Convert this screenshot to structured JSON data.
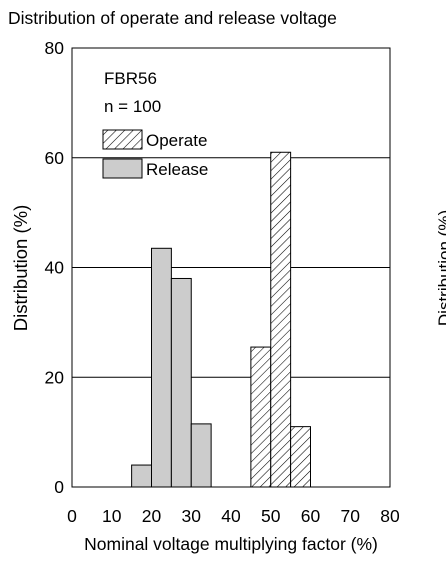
{
  "chart_data": {
    "type": "bar",
    "title": "Distribution of operate and release voltage",
    "xlabel": "Nominal voltage multiplying factor (%)",
    "ylabel": "Distribution (%)",
    "right_cut_label": "Distribution (%)",
    "xlim": [
      0,
      80
    ],
    "ylim": [
      0,
      80
    ],
    "xticks": [
      "0",
      "10",
      "20",
      "30",
      "40",
      "50",
      "60",
      "70",
      "80"
    ],
    "yticks": [
      "0",
      "20",
      "40",
      "60",
      "80"
    ],
    "grid": "horizontal",
    "annotations": [
      "FBR56",
      "n = 100"
    ],
    "legend_position": "top-left",
    "series": [
      {
        "name": "Operate",
        "fill": "hatched",
        "bins": [
          {
            "start": 45,
            "end": 50,
            "value": 25.5
          },
          {
            "start": 50,
            "end": 55,
            "value": 61
          },
          {
            "start": 55,
            "end": 60,
            "value": 11
          }
        ]
      },
      {
        "name": "Release",
        "fill": "#cccccc",
        "bins": [
          {
            "start": 15,
            "end": 20,
            "value": 4
          },
          {
            "start": 20,
            "end": 25,
            "value": 43.5
          },
          {
            "start": 25,
            "end": 30,
            "value": 38
          },
          {
            "start": 30,
            "end": 35,
            "value": 11.5
          }
        ]
      }
    ]
  }
}
